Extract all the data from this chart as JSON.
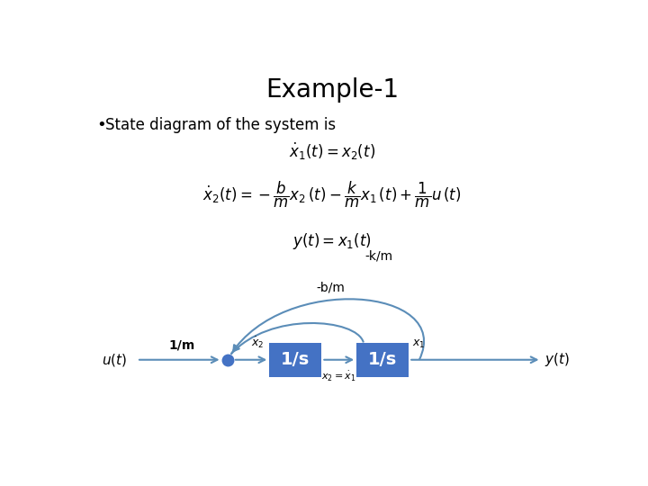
{
  "title": "Example-1",
  "title_fontsize": 20,
  "bullet_text": "State diagram of the system is",
  "bullet_fontsize": 12,
  "eq1": "$\\dot{x}_1(t) = x_2(t)$",
  "eq2": "$\\dot{x}_2(t) = -\\dfrac{b}{m}x_2\\,(t) - \\dfrac{k}{m}x_1\\,(t) + \\dfrac{1}{m}u\\,(t)$",
  "eq3": "$y(t) = x_1(t)$",
  "box_color": "#4472C4",
  "box_text_color": "#FFFFFF",
  "line_color": "#5B8DB8",
  "dot_color": "#4472C4",
  "background_color": "#FFFFFF",
  "diagram_label_u": "$u(t)$",
  "diagram_label_y": "$y(t)$",
  "diagram_label_1m": "1/m",
  "diagram_label_xdot2": "$\\dot{x}_2$",
  "diagram_label_x1": "$x_1$",
  "diagram_label_x2eq": "$x_2 = \\dot{x}_1$",
  "diagram_label_bm": "-b/m",
  "diagram_label_km": "-k/m",
  "box1_label": "1/s",
  "box2_label": "1/s"
}
